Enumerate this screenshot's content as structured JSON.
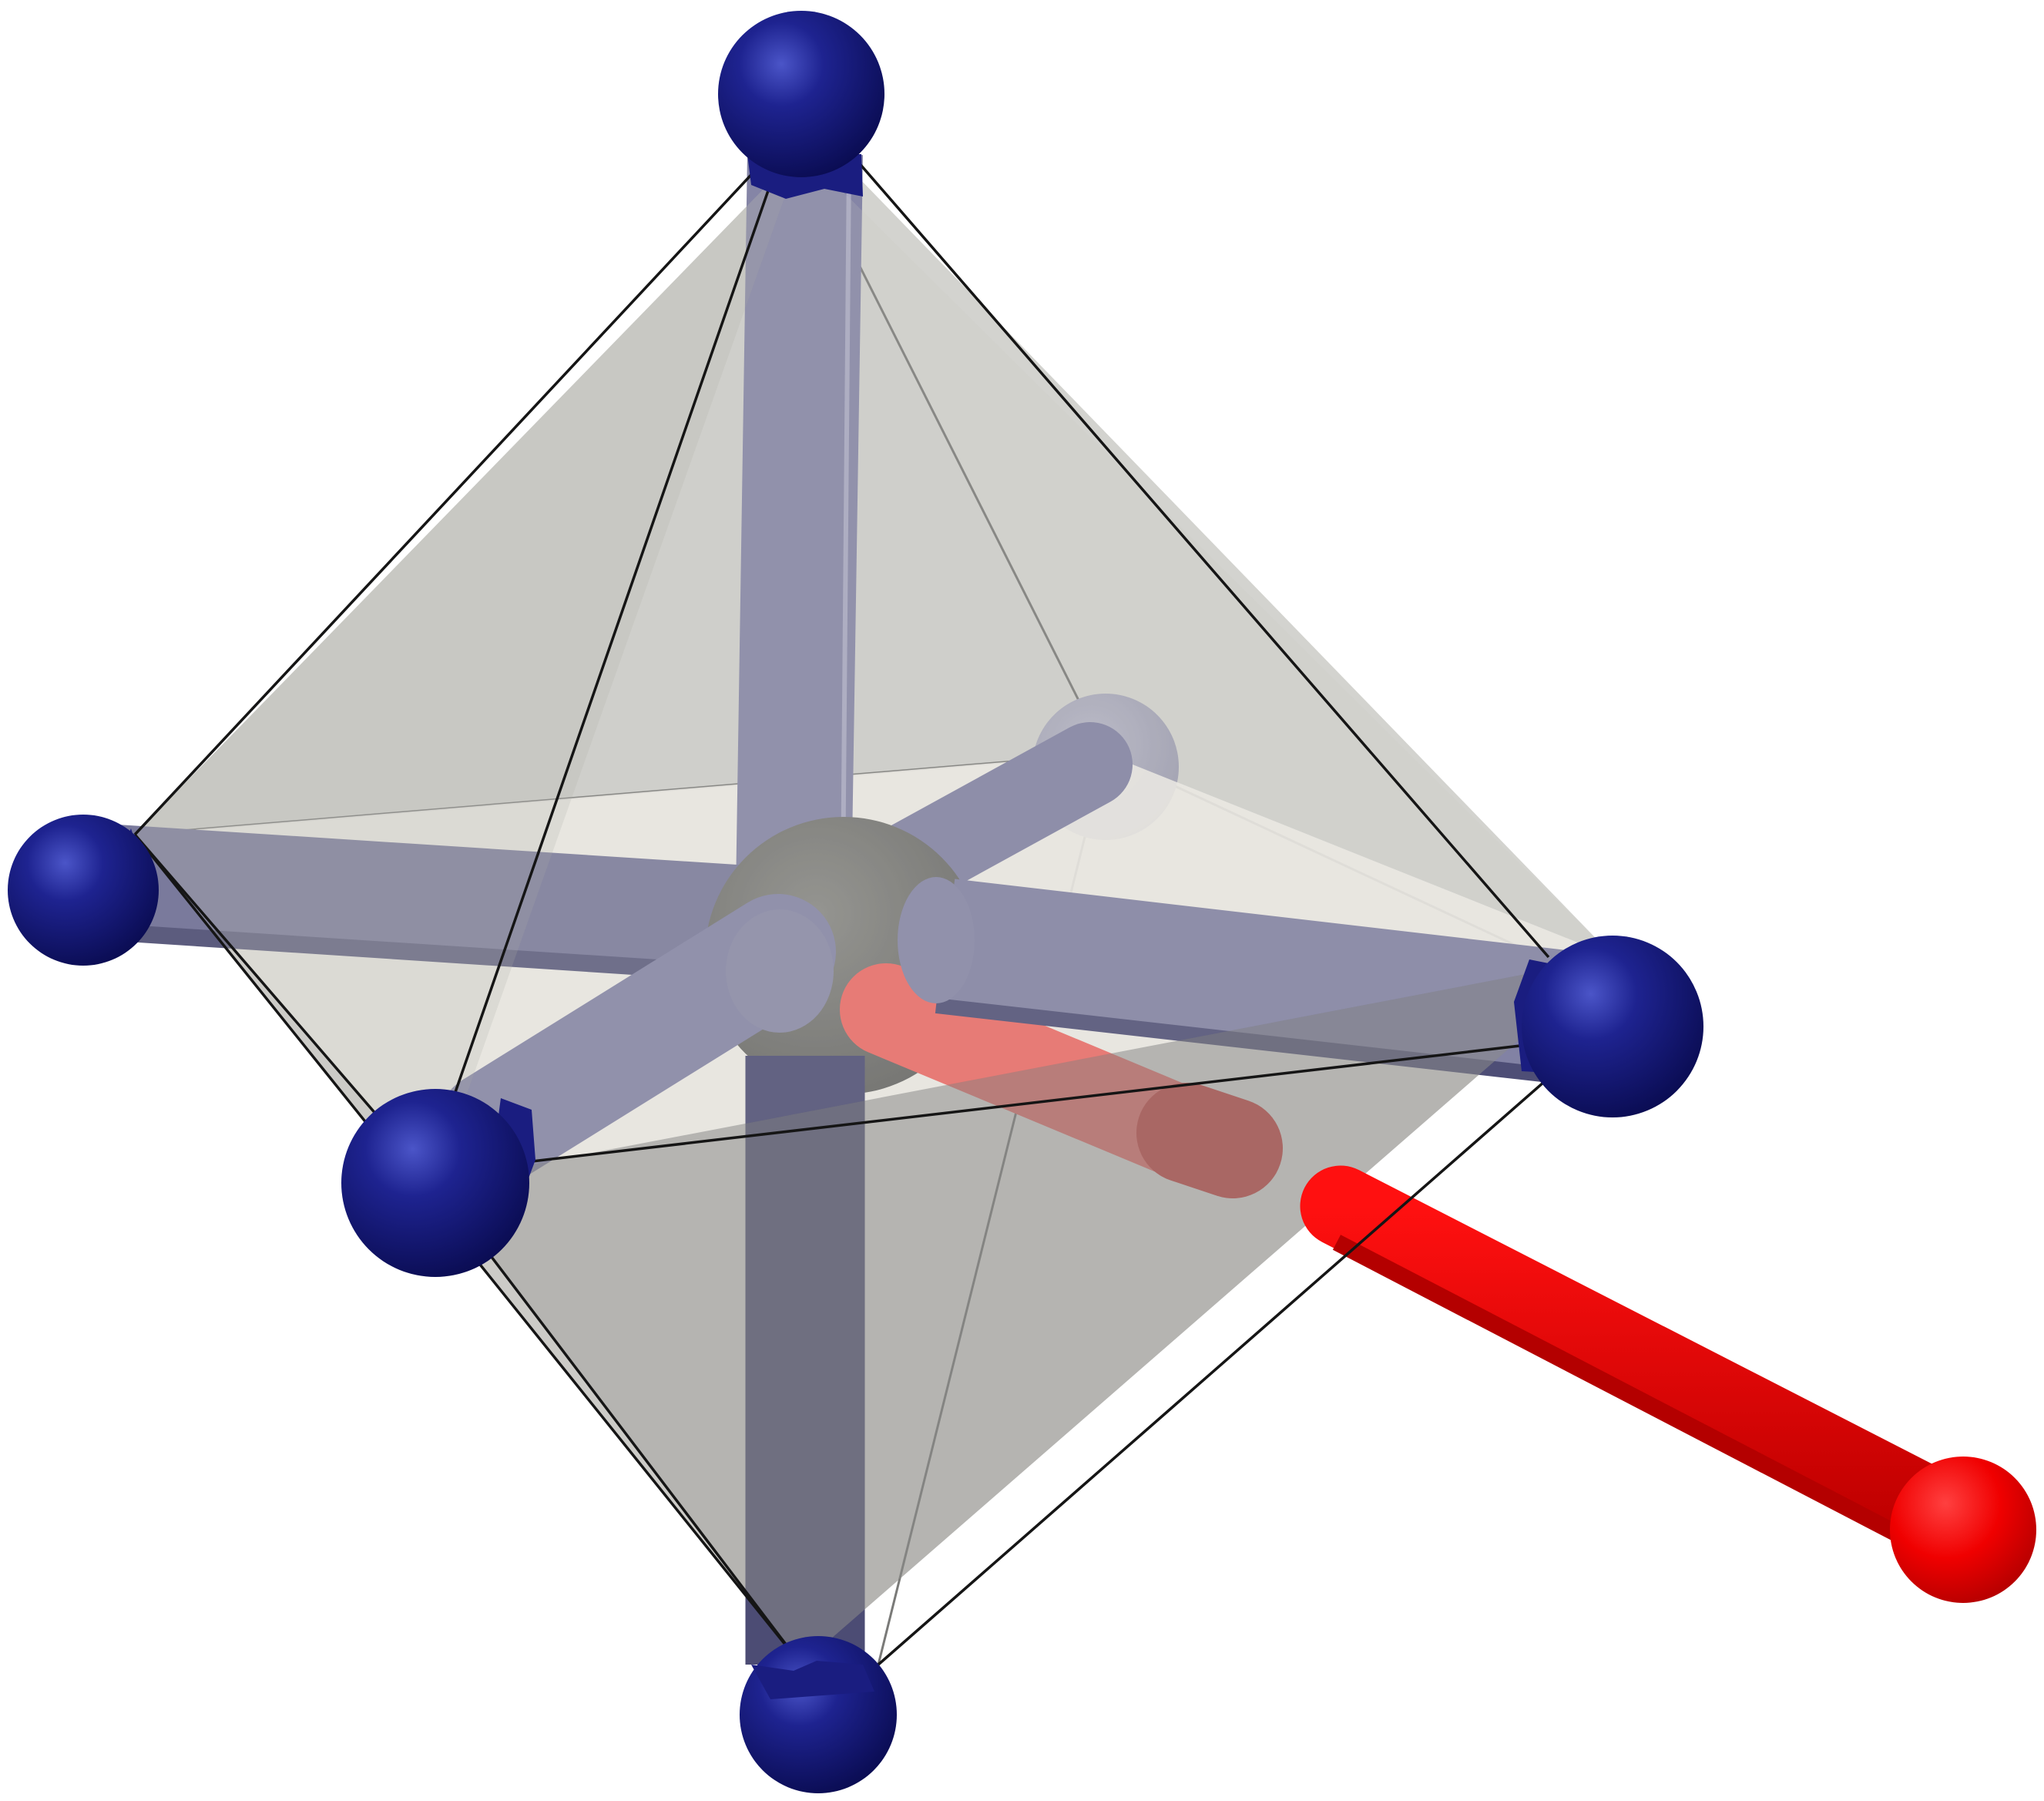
{
  "figure": {
    "kind": "octahedral coordination polyhedron",
    "background": "#ffffff",
    "colors": {
      "ligand_atom": "#1a1d80",
      "ligand_atom_highlight": "#5a63d6",
      "central_atom": "#777773",
      "bond_violet": "#8282a4",
      "bond_dark": "#4c4c74",
      "polyhedron_back_face": "#d3d3cf",
      "polyhedron_side_face": "#c2c2be",
      "polyhedron_lower_face": "#b4b4b2",
      "polyhedron_equator": "#eeebe5",
      "polyhedron_edge": "#1a1a1a",
      "external_bond": "#ff0000",
      "external_bond_shadow": "#b40000",
      "external_atom": "#ff0000"
    },
    "ligand_count": 6,
    "external_bond_count": 1
  }
}
